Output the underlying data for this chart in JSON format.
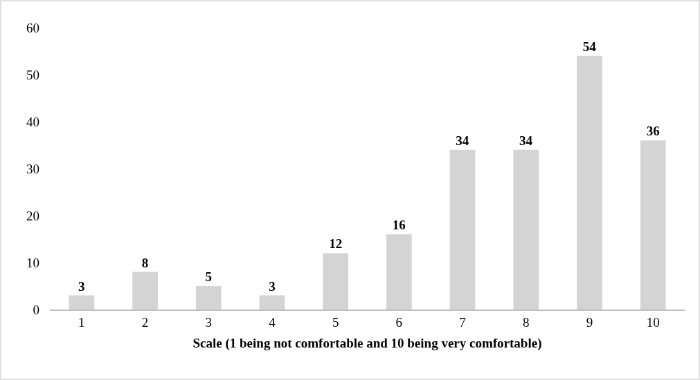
{
  "chart_data": {
    "type": "bar",
    "xlabel": "Scale (1 being not comfortable and 10 being very comfortable)",
    "categories": [
      "1",
      "2",
      "3",
      "4",
      "5",
      "6",
      "7",
      "8",
      "9",
      "10"
    ],
    "values": [
      3,
      8,
      5,
      3,
      12,
      16,
      34,
      34,
      54,
      36
    ],
    "color": "#d4d4d4",
    "ylim": [
      0,
      60
    ],
    "yticks": [
      0,
      10,
      20,
      30,
      40,
      50,
      60
    ],
    "grid": false,
    "data_labels": true
  }
}
